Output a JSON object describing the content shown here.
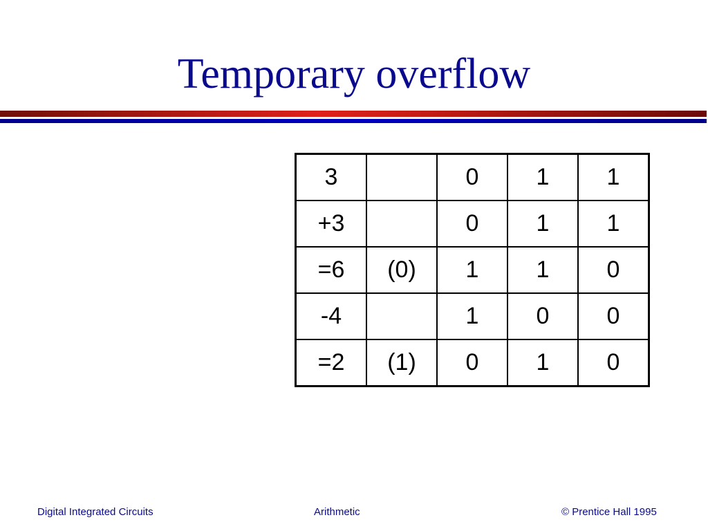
{
  "title": "Temporary overflow",
  "colors": {
    "title": "#0a0a8c",
    "rule_red": "#e0201a",
    "rule_blue": "#0000c0"
  },
  "table": {
    "rows": [
      [
        "3",
        "",
        "0",
        "1",
        "1"
      ],
      [
        "+3",
        "",
        "0",
        "1",
        "1"
      ],
      [
        "=6",
        "(0)",
        "1",
        "1",
        "0"
      ],
      [
        "-4",
        "",
        "1",
        "0",
        "0"
      ],
      [
        "=2",
        "(1)",
        "0",
        "1",
        "0"
      ]
    ]
  },
  "footer": {
    "left": "Digital Integrated Circuits",
    "center": "Arithmetic",
    "right": "© Prentice Hall 1995"
  }
}
